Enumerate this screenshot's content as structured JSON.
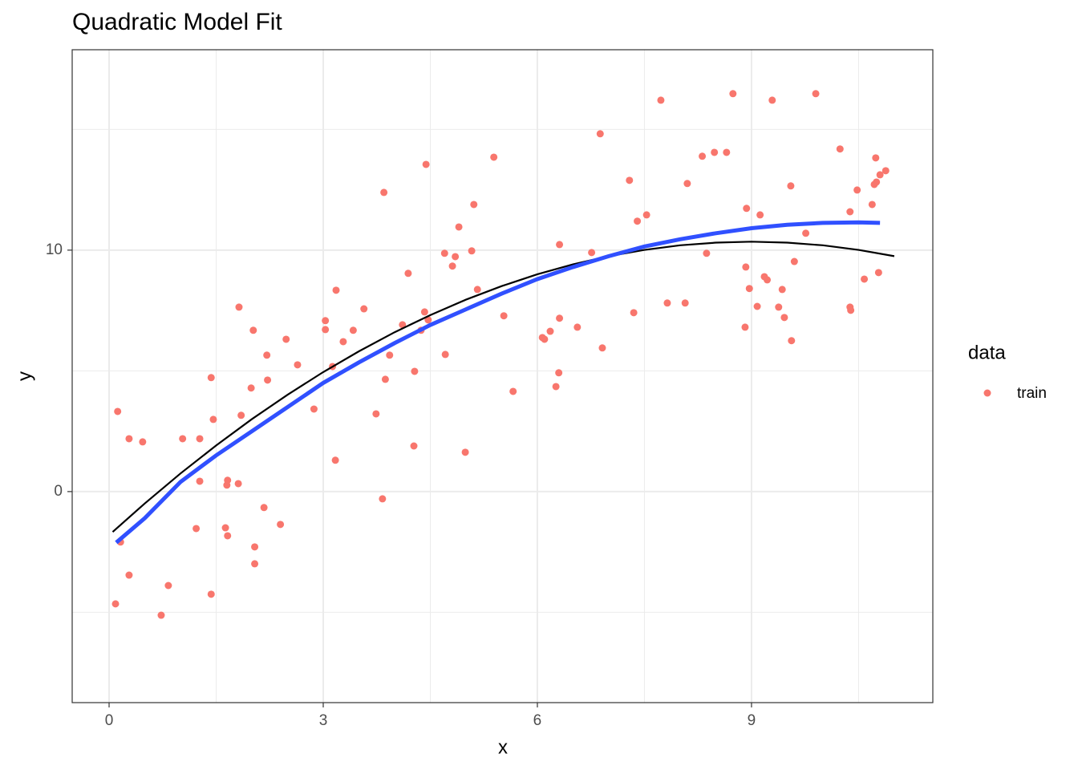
{
  "chart_data": {
    "type": "scatter",
    "title": "Quadratic Model Fit",
    "x_label": "x",
    "y_label": "y",
    "legend_title": "data",
    "xlim": [
      -0.517,
      11.54
    ],
    "ylim": [
      -8.74,
      18.3
    ],
    "xticks": [
      0,
      3,
      6,
      9
    ],
    "yticks": [
      0,
      10
    ],
    "x_minor_ticks": [
      1.5,
      4.5,
      7.5,
      10.5
    ],
    "y_minor_ticks": [
      -5,
      5,
      15
    ],
    "grid": true,
    "series": [
      {
        "type": "scatter",
        "name": "train",
        "color": "#f8766d",
        "x": [
          0.12,
          0.28,
          0.47,
          0.16,
          0.28,
          0.09,
          0.73,
          0.83,
          1.03,
          1.27,
          1.27,
          1.22,
          1.43,
          1.46,
          1.43,
          1.63,
          1.66,
          1.66,
          1.65,
          1.81,
          1.82,
          1.85,
          1.99,
          2.02,
          2.04,
          2.04,
          2.17,
          2.21,
          2.22,
          2.4,
          2.48,
          2.64,
          2.87,
          3.03,
          3.03,
          3.13,
          3.17,
          3.18,
          3.28,
          3.42,
          3.57,
          3.74,
          3.83,
          3.85,
          3.87,
          3.93,
          4.11,
          4.19,
          4.28,
          4.27,
          4.37,
          4.42,
          4.44,
          4.47,
          4.7,
          4.71,
          4.81,
          4.85,
          4.9,
          4.99,
          5.08,
          5.11,
          5.16,
          5.39,
          5.53,
          5.66,
          6.07,
          6.1,
          6.18,
          6.26,
          6.3,
          6.31,
          6.31,
          6.56,
          6.76,
          6.88,
          6.91,
          7.29,
          7.35,
          7.4,
          7.53,
          7.73,
          7.82,
          8.07,
          8.1,
          8.31,
          8.37,
          8.48,
          8.65,
          8.74,
          8.91,
          8.92,
          8.93,
          8.97,
          9.08,
          9.12,
          9.18,
          9.22,
          9.29,
          9.38,
          9.43,
          9.46,
          9.55,
          9.56,
          9.6,
          9.76,
          9.9,
          10.24,
          10.38,
          10.38,
          10.39,
          10.48,
          10.58,
          10.69,
          10.72,
          10.74,
          10.75,
          10.78,
          10.8,
          10.88
        ],
        "values": [
          3.32,
          2.19,
          2.06,
          -2.09,
          -3.46,
          -4.65,
          -5.12,
          -3.89,
          2.19,
          2.19,
          0.43,
          -1.53,
          4.72,
          2.99,
          -4.25,
          -1.5,
          -1.83,
          0.47,
          0.27,
          0.33,
          7.64,
          3.16,
          4.29,
          6.68,
          -2.29,
          -2.99,
          -0.66,
          5.65,
          4.62,
          -1.36,
          6.31,
          5.25,
          3.42,
          7.08,
          6.71,
          5.18,
          1.3,
          8.34,
          6.21,
          6.68,
          7.57,
          3.22,
          -0.3,
          12.39,
          4.65,
          5.65,
          6.91,
          9.04,
          4.98,
          1.89,
          6.68,
          7.44,
          13.55,
          7.11,
          9.87,
          5.68,
          9.34,
          9.73,
          10.96,
          1.63,
          9.97,
          11.89,
          8.37,
          13.85,
          7.28,
          4.15,
          6.38,
          6.31,
          6.64,
          4.35,
          4.92,
          10.23,
          7.18,
          6.81,
          9.9,
          14.82,
          5.95,
          12.89,
          7.41,
          11.2,
          11.46,
          16.21,
          7.81,
          7.81,
          12.76,
          13.89,
          9.87,
          14.05,
          14.05,
          16.48,
          6.81,
          9.3,
          11.73,
          8.41,
          7.67,
          11.46,
          8.9,
          8.77,
          16.21,
          7.64,
          8.37,
          7.21,
          12.66,
          6.25,
          9.53,
          10.7,
          16.48,
          14.19,
          11.59,
          7.64,
          7.51,
          12.49,
          8.8,
          11.89,
          12.72,
          13.82,
          12.82,
          9.07,
          13.12,
          13.29
        ]
      },
      {
        "type": "line",
        "color": "#000000",
        "x": [
          0.05,
          0.5,
          1,
          1.5,
          2,
          2.5,
          3,
          3.5,
          4,
          4.5,
          5,
          5.5,
          6,
          6.5,
          7,
          7.5,
          8,
          8.5,
          9,
          9.5,
          10,
          10.5,
          11
        ],
        "values": [
          -1.67,
          -0.49,
          0.75,
          1.91,
          3.0,
          4.01,
          4.95,
          5.81,
          6.6,
          7.31,
          7.95,
          8.51,
          9.0,
          9.41,
          9.75,
          10.01,
          10.2,
          10.31,
          10.35,
          10.31,
          10.2,
          10.01,
          9.75
        ]
      },
      {
        "type": "line",
        "color": "#3050ff",
        "x": [
          0.1,
          0.5,
          1,
          1.5,
          2,
          2.5,
          3,
          3.5,
          4,
          4.5,
          5,
          5.5,
          6,
          6.5,
          7,
          7.5,
          8,
          8.5,
          9,
          9.5,
          10,
          10.5,
          10.8
        ],
        "values": [
          -2.11,
          -1.1,
          0.4,
          1.5,
          2.5,
          3.5,
          4.5,
          5.35,
          6.15,
          6.9,
          7.55,
          8.2,
          8.8,
          9.3,
          9.75,
          10.15,
          10.45,
          10.7,
          10.91,
          11.05,
          11.13,
          11.15,
          11.13
        ]
      }
    ]
  }
}
